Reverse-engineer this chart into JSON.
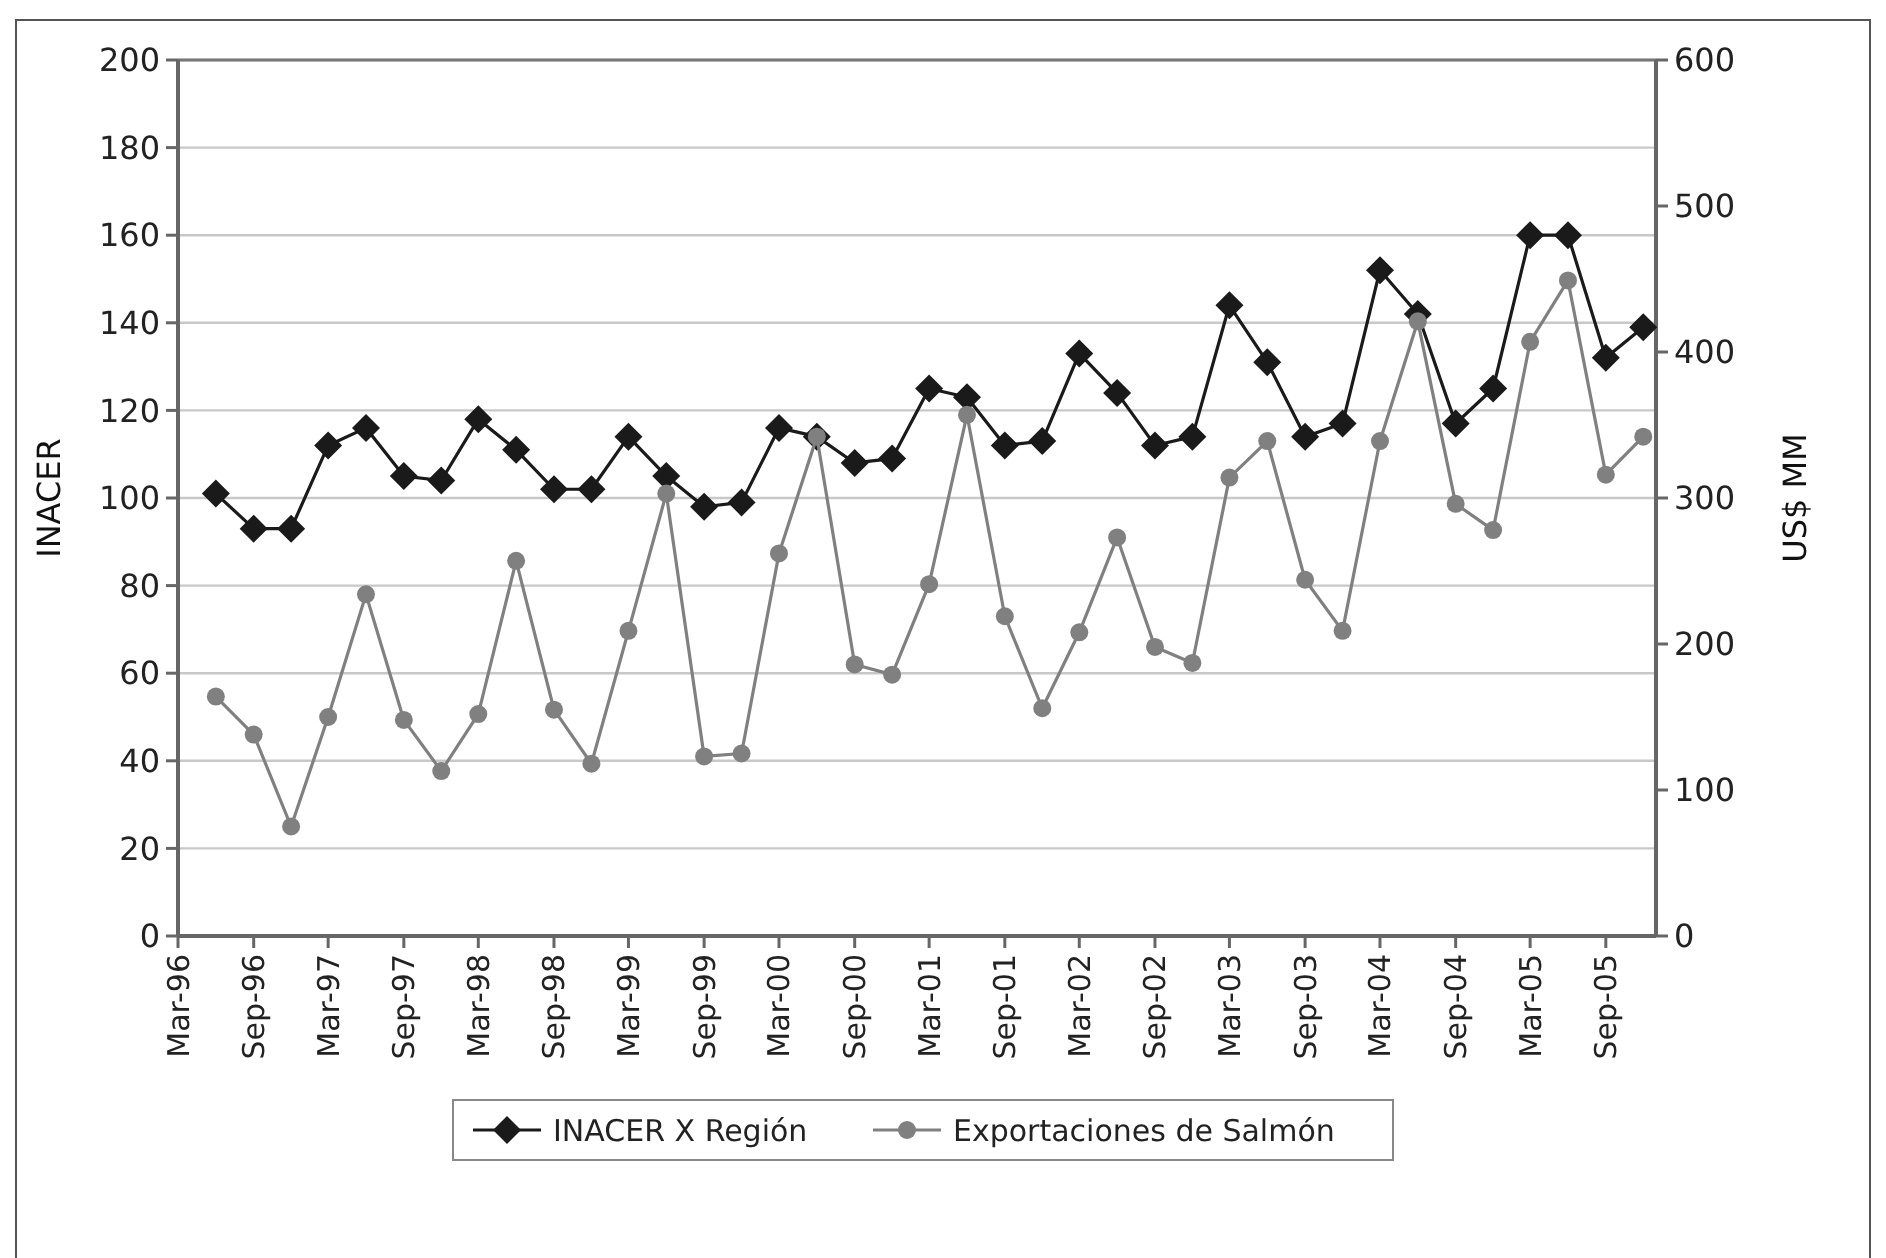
{
  "chart_data": {
    "type": "line",
    "ylabel": "INACER",
    "y2label": "US$ MM",
    "x": [
      "1996-06",
      "1996-09",
      "1996-12",
      "1997-03",
      "1997-06",
      "1997-09",
      "1997-12",
      "1998-03",
      "1998-06",
      "1998-09",
      "1998-12",
      "1999-03",
      "1999-06",
      "1999-09",
      "1999-12",
      "2000-03",
      "2000-06",
      "2000-09",
      "2000-12",
      "2001-03",
      "2001-06",
      "2001-09",
      "2001-12",
      "2002-03",
      "2002-06",
      "2002-09",
      "2002-12",
      "2003-03",
      "2003-06",
      "2003-09",
      "2003-12",
      "2004-03",
      "2004-06",
      "2004-09",
      "2004-12",
      "2005-03",
      "2005-06",
      "2005-09",
      "2005-12"
    ],
    "series": [
      {
        "name": "INACER X Región",
        "color": "#1a1a1a",
        "marker": "diamond",
        "values": [
          101,
          93,
          93,
          112,
          116,
          105,
          104,
          118,
          111,
          102,
          102,
          114,
          105,
          98,
          99,
          116,
          114,
          108,
          109,
          125,
          123,
          112,
          113,
          133,
          124,
          112,
          114,
          144,
          131,
          114,
          117,
          152,
          142,
          117,
          125,
          160,
          160,
          132,
          139
        ]
      },
      {
        "name": "Exportaciones de Salmón",
        "color": "#808080",
        "marker": "circle",
        "axis": "y2",
        "values": [
          164,
          138,
          75,
          150,
          234,
          148,
          113,
          152,
          257,
          155,
          118,
          209,
          303,
          123,
          125,
          262,
          342,
          186,
          179,
          241,
          357,
          219,
          156,
          208,
          273,
          198,
          187,
          314,
          339,
          244,
          209,
          339,
          421,
          296,
          278,
          407,
          449,
          316,
          342
        ]
      }
    ],
    "xlim": [
      "1996-03",
      "2006-01"
    ],
    "xticks": [
      {
        "value": "1996-03",
        "label": "Mar-96"
      },
      {
        "value": "1996-09",
        "label": "Sep-96"
      },
      {
        "value": "1997-03",
        "label": "Mar-97"
      },
      {
        "value": "1997-09",
        "label": "Sep-97"
      },
      {
        "value": "1998-03",
        "label": "Mar-98"
      },
      {
        "value": "1998-09",
        "label": "Sep-98"
      },
      {
        "value": "1999-03",
        "label": "Mar-99"
      },
      {
        "value": "1999-09",
        "label": "Sep-99"
      },
      {
        "value": "2000-03",
        "label": "Mar-00"
      },
      {
        "value": "2000-09",
        "label": "Sep-00"
      },
      {
        "value": "2001-03",
        "label": "Mar-01"
      },
      {
        "value": "2001-09",
        "label": "Sep-01"
      },
      {
        "value": "2002-03",
        "label": "Mar-02"
      },
      {
        "value": "2002-09",
        "label": "Sep-02"
      },
      {
        "value": "2003-03",
        "label": "Mar-03"
      },
      {
        "value": "2003-09",
        "label": "Sep-03"
      },
      {
        "value": "2004-03",
        "label": "Mar-04"
      },
      {
        "value": "2004-09",
        "label": "Sep-04"
      },
      {
        "value": "2005-03",
        "label": "Mar-05"
      },
      {
        "value": "2005-09",
        "label": "Sep-05"
      }
    ],
    "ylim": [
      0,
      200
    ],
    "yticks": [
      0,
      20,
      40,
      60,
      80,
      100,
      120,
      140,
      160,
      180,
      200
    ],
    "y2lim": [
      0,
      600
    ],
    "y2ticks": [
      0,
      100,
      200,
      300,
      400,
      500,
      600
    ],
    "grid": "y",
    "legend": "bottom"
  }
}
